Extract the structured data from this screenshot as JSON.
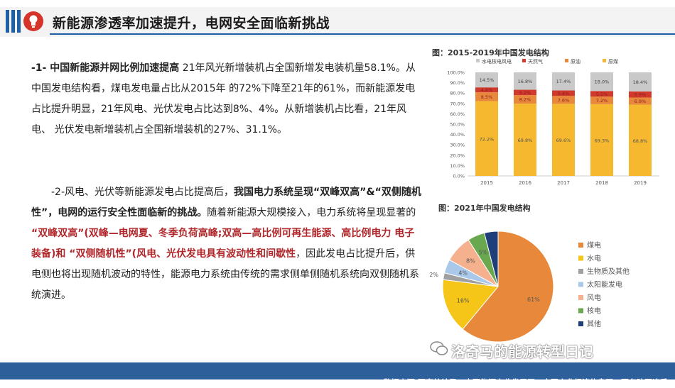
{
  "header": {
    "title": "新能源渗透率加速提升，电网安全面临新挑战"
  },
  "para1": {
    "lead": "-1-  中国新能源并网比例加速提高",
    "text": "  21年风光新增装机占全国新增发电装机量58.1%。从中国发电结构看，煤电发电量占比从2015年  的72%下降至21年的61%，而新能源发电占比提升明显，21年风电、光伏发电占比达到8%、4%。从新增装机占比看，21年风电、 光伏发电新增装机占全国新增装机的27%、31.1%。"
  },
  "para2": {
    "t1": "-2-风电、光伏等新能源发电占比提高后，",
    "t2": "我国电力系统呈现“双峰双高”&“双侧随机性”，电网的运行安全性面临新的挑战。",
    "t3": "随着新能源大规模接入，电力系统将呈现显著的 ",
    "t4": "“双峰双高”",
    "t5": "(双峰—电网夏、冬季负荷高峰;双高—高比例可再生能源、高比例电力 电子装备)和  “双侧随机性”(风电、光伏发电具有波动性和间歇性",
    "t6": "，因此发电占比提升后，供电侧也将出现随机波动的特性，能源电力系统由传统的需求侧单侧随机系统向双侧随机系统演进。"
  },
  "chart_data": [
    {
      "type": "bar",
      "title": "图：2015-2019年中国发电结构",
      "categories": [
        "2015",
        "2016",
        "2017",
        "2018",
        "2019"
      ],
      "ylim": [
        0,
        100
      ],
      "yticks": [
        "0.0%",
        "10.0%",
        "20.0%",
        "30.0%",
        "40.0%",
        "50.0%",
        "60.0%",
        "70.0%",
        "80.0%",
        "90.0%",
        "100.0%"
      ],
      "series": [
        {
          "name": "原煤",
          "color": "#f5b82e",
          "values": [
            72.2,
            69.8,
            69.6,
            69.3,
            68.8
          ]
        },
        {
          "name": "原油",
          "color": "#e8883a",
          "values": [
            8.5,
            8.2,
            7.6,
            7.2,
            6.9
          ]
        },
        {
          "name": "天然气",
          "color": "#d0392b",
          "values": [
            4.8,
            5.2,
            5.4,
            5.5,
            5.9
          ]
        },
        {
          "name": "水电核电风电",
          "color": "#c9c9c9",
          "values": [
            14.5,
            16.8,
            17.4,
            18.0,
            18.4
          ]
        }
      ]
    },
    {
      "type": "pie",
      "title": "图：2021年中国发电结构",
      "labels": [
        "煤电",
        "水电",
        "生物质及其他",
        "太阳能发电",
        "风电",
        "核电",
        "其他"
      ],
      "values": [
        61,
        16,
        2,
        4,
        8,
        5,
        4
      ],
      "value_labels": [
        "61%",
        "16%",
        "2%",
        "4%",
        "8%",
        "5%",
        ""
      ],
      "colors": [
        "#e8883a",
        "#f5c518",
        "#a0a0a0",
        "#a9c8ea",
        "#f5b08e",
        "#6aa84f",
        "#1f3f7a"
      ]
    }
  ],
  "footer": {
    "source": "数据来源:国家统计局，中国能源产业发展网，中国产业经济信息网，国务院国资委"
  },
  "watermark": {
    "text": "洛奇马的能源转型日记"
  }
}
